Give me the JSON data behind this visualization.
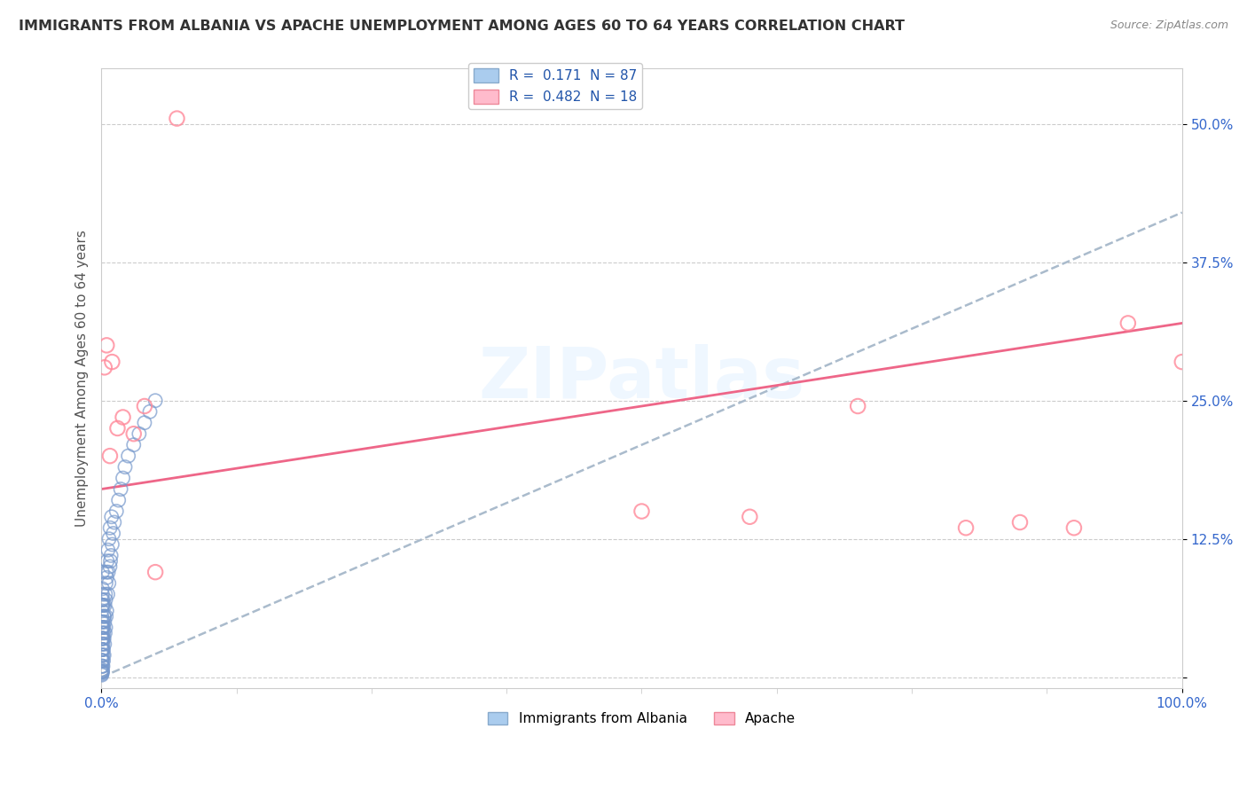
{
  "title": "IMMIGRANTS FROM ALBANIA VS APACHE UNEMPLOYMENT AMONG AGES 60 TO 64 YEARS CORRELATION CHART",
  "source": "Source: ZipAtlas.com",
  "ylabel": "Unemployment Among Ages 60 to 64 years",
  "xlabel": "",
  "xlim": [
    0,
    100
  ],
  "ylim": [
    -1,
    55
  ],
  "yticks": [
    0,
    12.5,
    25.0,
    37.5,
    50.0
  ],
  "ytick_labels": [
    "",
    "12.5%",
    "25.0%",
    "37.5%",
    "50.0%"
  ],
  "xtick_labels": [
    "0.0%",
    "100.0%"
  ],
  "legend_label1": "Immigrants from Albania",
  "legend_label2": "Apache",
  "blue_color": "#7799CC",
  "pink_color": "#FF8899",
  "blue_line_color": "#AABBCC",
  "pink_line_color": "#EE6688",
  "watermark": "ZIPatlas",
  "blue_line_x0": 0,
  "blue_line_y0": 0,
  "blue_line_x1": 100,
  "blue_line_y1": 42,
  "pink_line_x0": 0,
  "pink_line_y0": 17,
  "pink_line_x1": 100,
  "pink_line_y1": 32,
  "blue_points_x": [
    0.05,
    0.05,
    0.05,
    0.05,
    0.05,
    0.05,
    0.05,
    0.05,
    0.05,
    0.05,
    0.05,
    0.05,
    0.05,
    0.1,
    0.1,
    0.1,
    0.1,
    0.1,
    0.1,
    0.1,
    0.1,
    0.15,
    0.15,
    0.15,
    0.15,
    0.15,
    0.2,
    0.2,
    0.2,
    0.2,
    0.25,
    0.25,
    0.25,
    0.3,
    0.3,
    0.35,
    0.4,
    0.4,
    0.45,
    0.5,
    0.5,
    0.6,
    0.65,
    0.7,
    0.8,
    0.85,
    0.9,
    1.0,
    1.1,
    1.2,
    1.4,
    1.6,
    1.8,
    2.0,
    2.2,
    2.5,
    3.0,
    3.5,
    4.0,
    4.5,
    5.0,
    0.08,
    0.08,
    0.08,
    0.1,
    0.1,
    0.12,
    0.12,
    0.15,
    0.18,
    0.22,
    0.28,
    0.33,
    0.38,
    0.43,
    0.48,
    0.55,
    0.62,
    0.72,
    0.82,
    0.95,
    0.05,
    0.05,
    0.05,
    0.05,
    0.07,
    0.09
  ],
  "blue_points_y": [
    0.5,
    1.0,
    1.5,
    2.0,
    2.5,
    3.0,
    3.5,
    4.0,
    4.5,
    5.0,
    5.5,
    6.0,
    7.0,
    0.5,
    1.0,
    1.5,
    2.5,
    3.5,
    4.5,
    6.5,
    8.0,
    1.0,
    2.0,
    3.0,
    5.0,
    7.0,
    1.5,
    2.5,
    4.0,
    6.5,
    2.0,
    3.5,
    5.5,
    3.0,
    5.0,
    4.0,
    4.5,
    7.0,
    5.5,
    6.0,
    9.0,
    7.5,
    9.5,
    8.5,
    10.0,
    10.5,
    11.0,
    12.0,
    13.0,
    14.0,
    15.0,
    16.0,
    17.0,
    18.0,
    19.0,
    20.0,
    21.0,
    22.0,
    23.0,
    24.0,
    25.0,
    0.5,
    1.5,
    3.5,
    7.5,
    9.5,
    2.5,
    6.5,
    4.5,
    3.5,
    4.5,
    5.5,
    6.5,
    7.5,
    8.5,
    9.5,
    10.5,
    11.5,
    12.5,
    13.5,
    14.5,
    0.2,
    0.3,
    0.5,
    0.7,
    0.4,
    0.6
  ],
  "pink_points_x": [
    0.3,
    0.5,
    1.0,
    1.5,
    2.0,
    3.0,
    4.0,
    5.0,
    7.0,
    60.0,
    70.0,
    80.0,
    85.0,
    90.0,
    95.0,
    100.0,
    50.0,
    0.8
  ],
  "pink_points_y": [
    28.0,
    30.0,
    28.5,
    22.5,
    23.5,
    22.0,
    24.5,
    9.5,
    50.5,
    14.5,
    24.5,
    13.5,
    14.0,
    13.5,
    32.0,
    28.5,
    15.0,
    20.0
  ]
}
